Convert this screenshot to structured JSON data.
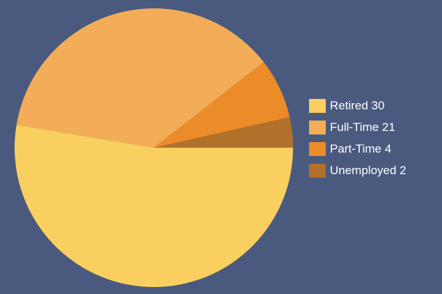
{
  "chart_data": {
    "type": "pie",
    "title": "",
    "slices": [
      {
        "label": "Retired",
        "value": 30,
        "display": "Retired 30",
        "color": "#f9cf5f"
      },
      {
        "label": "Full-Time",
        "value": 21,
        "display": "Full-Time 21",
        "color": "#f3ad59"
      },
      {
        "label": "Part-Time",
        "value": 4,
        "display": "Part-Time 4",
        "color": "#ec8c29"
      },
      {
        "label": "Unemployed",
        "value": 2,
        "display": "Unemployed 2",
        "color": "#b2712a"
      }
    ],
    "legend_position": "right",
    "background_color": "#4a5a7e"
  }
}
